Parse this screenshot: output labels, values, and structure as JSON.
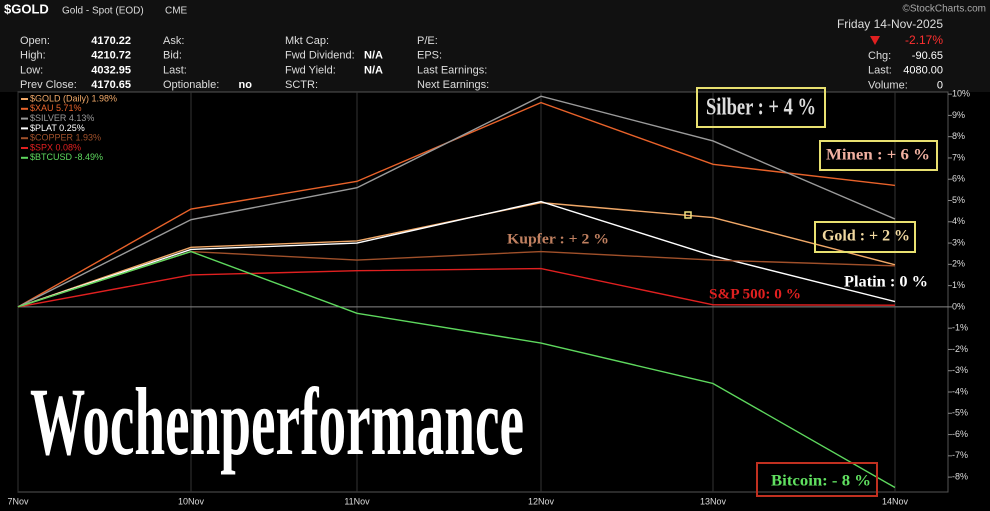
{
  "header": {
    "symbol": "$GOLD",
    "name": "Gold - Spot (EOD)",
    "exchange": "CME",
    "copyright": "©StockCharts.com",
    "date": "Friday  14-Nov-2025",
    "change_pct": "-2.17%",
    "fields": [
      {
        "label": "Open:",
        "value": "4170.22"
      },
      {
        "label": "High:",
        "value": "4210.72"
      },
      {
        "label": "Low:",
        "value": "4032.95"
      },
      {
        "label": "Prev Close:",
        "value": "4170.65"
      },
      {
        "label": "Ask:"
      },
      {
        "label": "Bid:"
      },
      {
        "label": "Last:"
      },
      {
        "label": "Optionable:",
        "value": "no"
      },
      {
        "label": "Mkt Cap:"
      },
      {
        "label": "Fwd Dividend:",
        "value": "N/A"
      },
      {
        "label": "Fwd Yield:",
        "value": "N/A"
      },
      {
        "label": "SCTR:"
      },
      {
        "label": "P/E:"
      },
      {
        "label": "EPS:"
      },
      {
        "label": "Last Earnings:"
      },
      {
        "label": "Next Earnings:"
      }
    ],
    "right_fields": [
      {
        "label": "Chg:",
        "value": "-90.65"
      },
      {
        "label": "Last:",
        "value": "4080.00"
      },
      {
        "label": "Volume:",
        "value": "0"
      }
    ]
  },
  "chart_data": {
    "type": "line",
    "categories": [
      "7Nov",
      "10Nov",
      "11Nov",
      "12Nov",
      "13Nov",
      "14Nov"
    ],
    "series": [
      {
        "name": "$GOLD (Daily) 1.98%",
        "color": "#f0a868",
        "values": [
          0,
          2.8,
          3.1,
          4.9,
          4.2,
          1.98
        ]
      },
      {
        "name": "$XAU 5.71%",
        "color": "#e8622a",
        "values": [
          0,
          4.6,
          5.9,
          9.6,
          6.7,
          5.71
        ]
      },
      {
        "name": "$SILVER 4.13%",
        "color": "#9a9a9a",
        "values": [
          0,
          4.1,
          5.6,
          9.9,
          7.8,
          4.13
        ]
      },
      {
        "name": "$PLAT 0.25%",
        "color": "#ffffff",
        "values": [
          0,
          2.7,
          3.0,
          4.95,
          2.4,
          0.25
        ]
      },
      {
        "name": "$COPPER 1.93%",
        "color": "#a0502a",
        "values": [
          0,
          2.6,
          2.2,
          2.6,
          2.2,
          1.93
        ]
      },
      {
        "name": "$SPX 0.08%",
        "color": "#e02020",
        "values": [
          0,
          1.5,
          1.7,
          1.8,
          0.1,
          0.08
        ]
      },
      {
        "name": "$BTCUSD -8.49%",
        "color": "#5ed85e",
        "values": [
          0,
          2.6,
          -0.3,
          -1.7,
          -3.6,
          -8.49
        ]
      }
    ],
    "ylim": [
      -8.7,
      10.1
    ],
    "yticks": [
      {
        "value": 10,
        "label": "10%"
      },
      {
        "value": 9,
        "label": "9%"
      },
      {
        "value": 8,
        "label": "8%"
      },
      {
        "value": 7,
        "label": "7%"
      },
      {
        "value": 6,
        "label": "6%"
      },
      {
        "value": 5,
        "label": "5%"
      },
      {
        "value": 4,
        "label": "4%"
      },
      {
        "value": 3,
        "label": "3%"
      },
      {
        "value": 2,
        "label": "2%"
      },
      {
        "value": 1,
        "label": "1%"
      },
      {
        "value": 0,
        "label": "0%"
      },
      {
        "value": -1,
        "label": "-1%"
      },
      {
        "value": -2,
        "label": "-2%"
      },
      {
        "value": -3,
        "label": "-3%"
      },
      {
        "value": -4,
        "label": "-4%"
      },
      {
        "value": -5,
        "label": "-5%"
      },
      {
        "value": -6,
        "label": "-6%"
      },
      {
        "value": -7,
        "label": "-7%"
      },
      {
        "value": -8,
        "label": "-8%"
      }
    ],
    "annotations": [
      "Silber : + 4 %",
      "Minen : + 6 %",
      "Kupfer : + 2 %",
      "Gold : + 2 %",
      "Platin : 0 %",
      "S&P 500: 0 %",
      "Bitcoin: - 8 %",
      "Wochenperformance"
    ]
  }
}
